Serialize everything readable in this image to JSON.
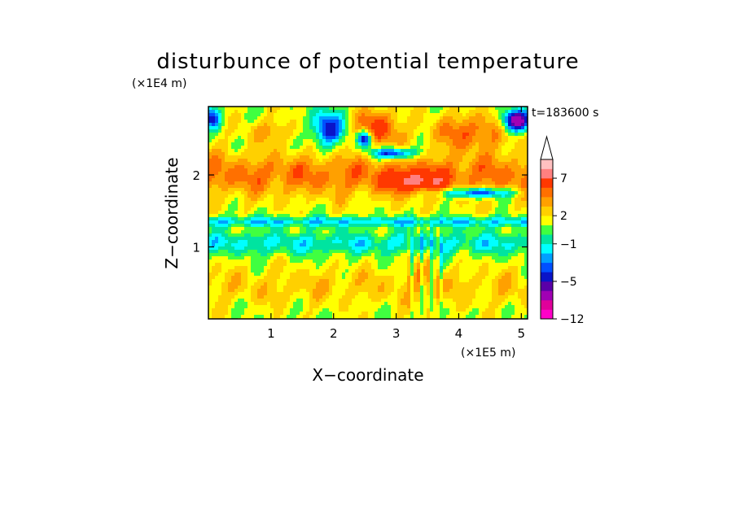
{
  "chart_data": {
    "type": "heatmap",
    "title": "disturbunce of potential temperature",
    "time_label": "t=183600 s",
    "xlabel": "X−coordinate",
    "ylabel": "Z−coordinate",
    "x_unit": "(×1E5 m)",
    "y_unit": "(×1E4 m)",
    "xlim": [
      0,
      5.1
    ],
    "ylim": [
      0,
      2.95
    ],
    "x_ticks": [
      1,
      2,
      3,
      4,
      5
    ],
    "y_ticks": [
      1,
      2
    ],
    "x_tick_labels": [
      "1",
      "2",
      "3",
      "4",
      "5"
    ],
    "y_tick_labels": [
      "1",
      "2"
    ],
    "colorbar": {
      "levels": [
        -12,
        -10,
        -8,
        -6,
        -5,
        -4,
        -3,
        -2,
        -1,
        0,
        1,
        2,
        3,
        4,
        5,
        7,
        9,
        11
      ],
      "colors": [
        "#ff00c8",
        "#e0009a",
        "#a000b4",
        "#5a00a8",
        "#0a14c8",
        "#0050ff",
        "#00a0ff",
        "#00ffff",
        "#00e4a0",
        "#40ff40",
        "#ffff00",
        "#ffd000",
        "#ffa000",
        "#ff7000",
        "#ff3800",
        "#ff8080",
        "#ffc0c0"
      ],
      "tick_labels": [
        "−12",
        "−5",
        "−1",
        "2",
        "7"
      ],
      "extend": "max"
    }
  }
}
